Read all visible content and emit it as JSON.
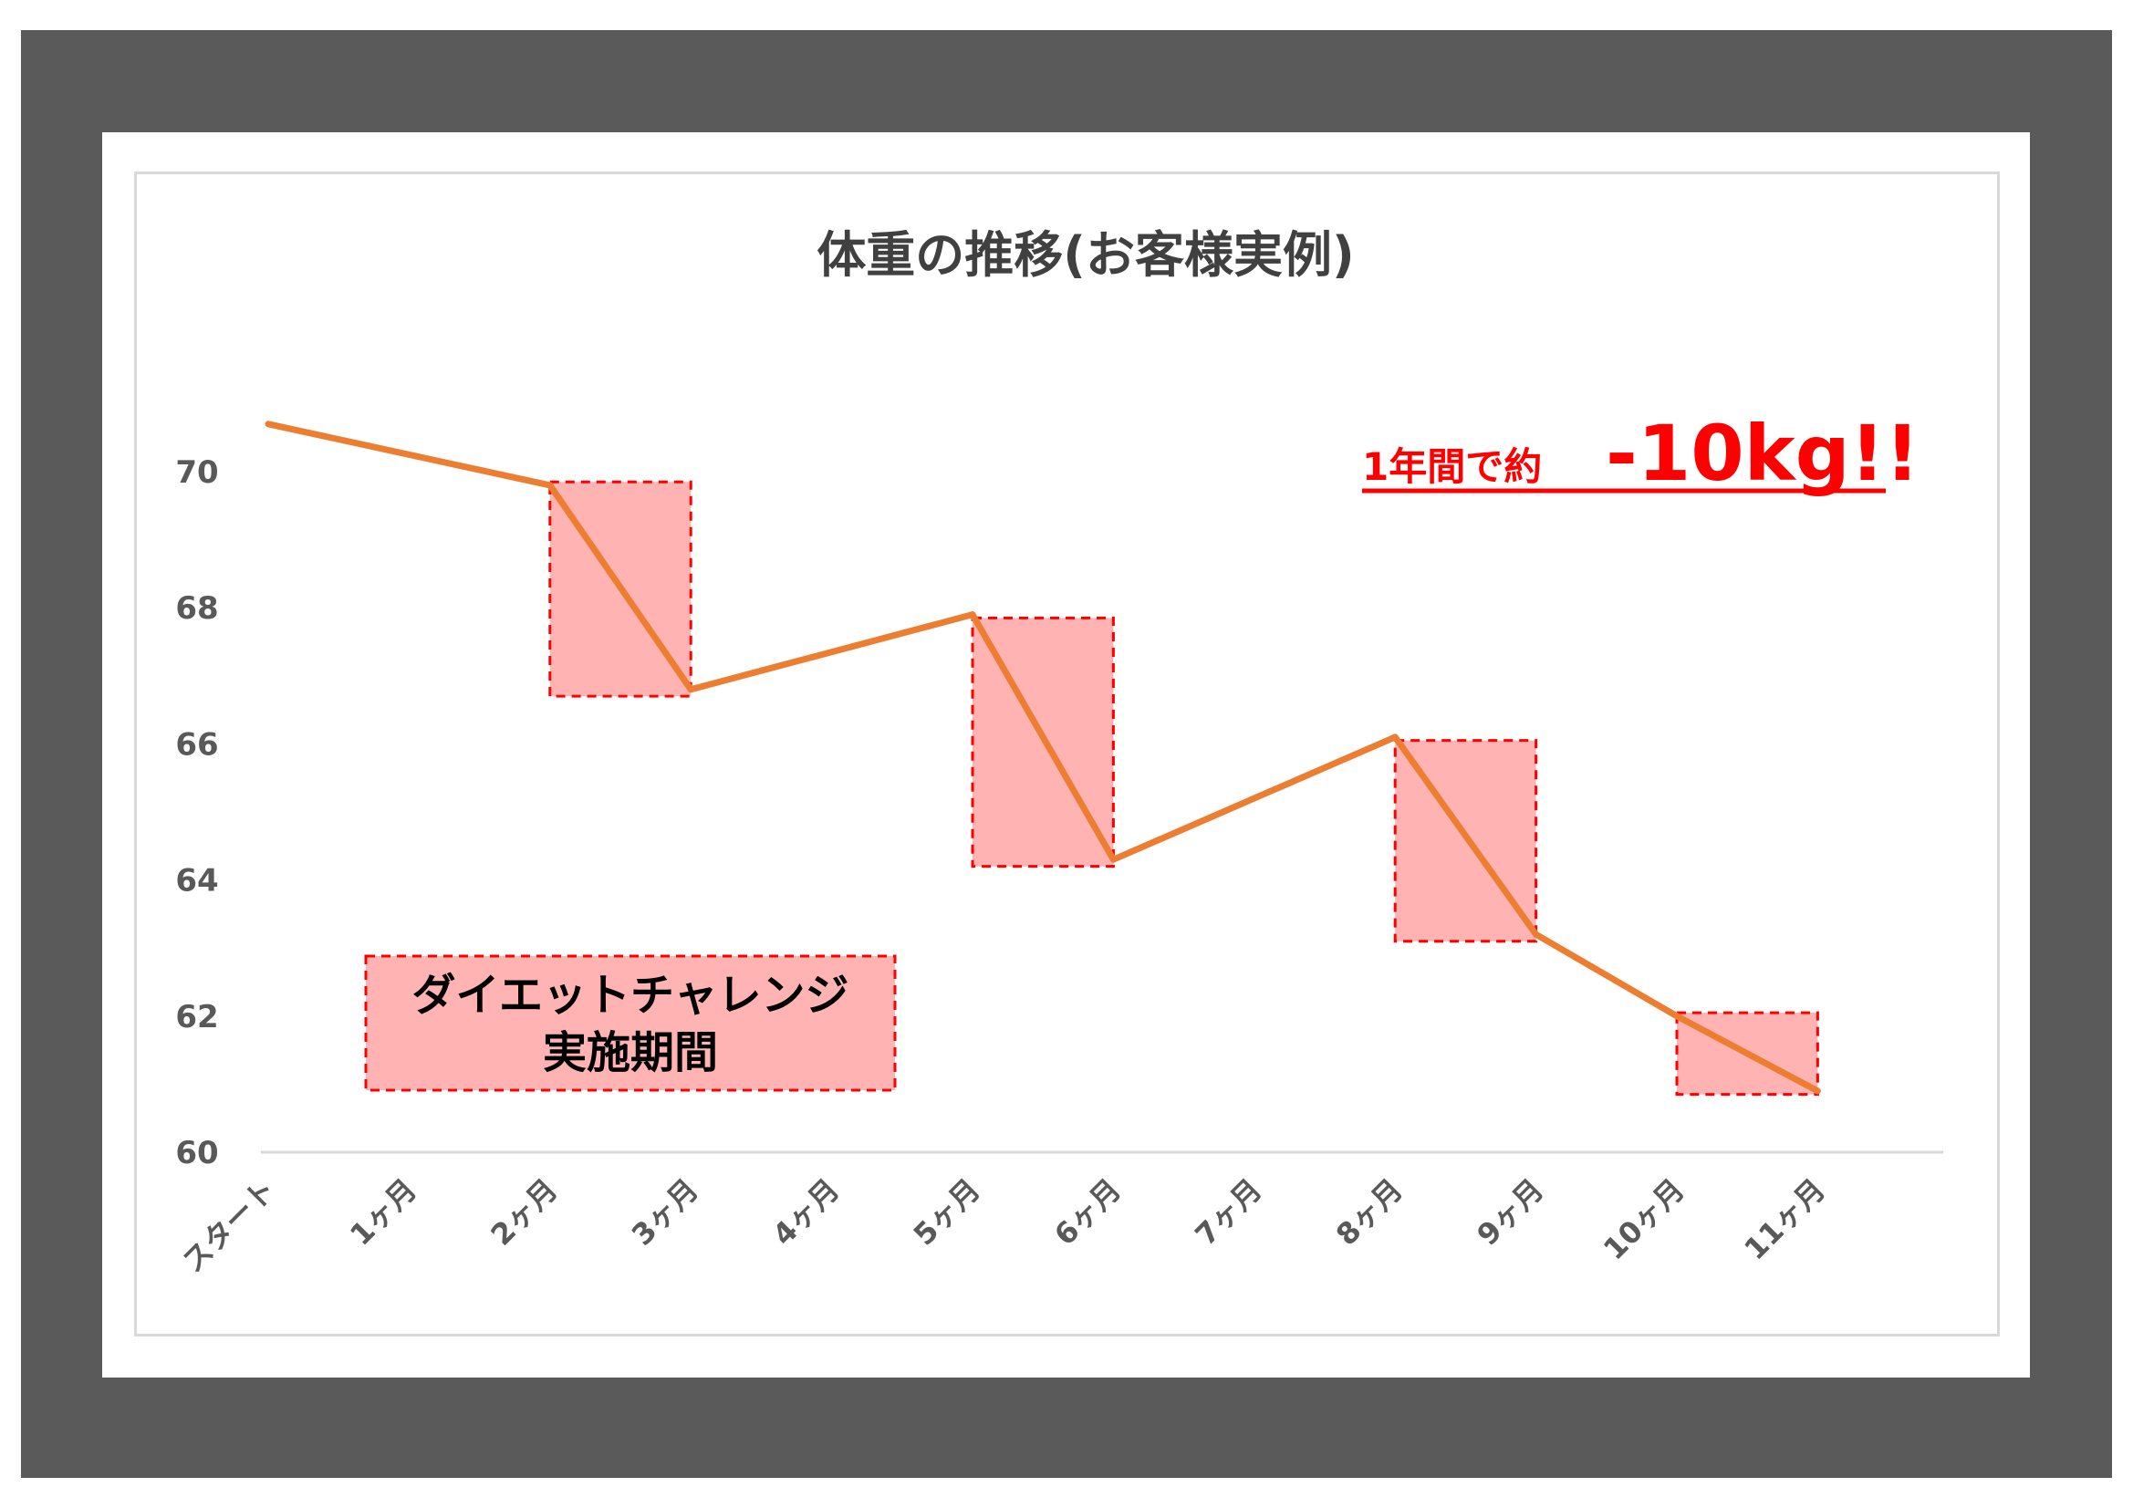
{
  "chart_data": {
    "type": "line",
    "title": "体重の推移(お客様実例)",
    "xlabel": "",
    "ylabel": "",
    "categories": [
      "スタート",
      "1ヶ月",
      "2ヶ月",
      "3ヶ月",
      "4ヶ月",
      "5ヶ月",
      "6ヶ月",
      "7ヶ月",
      "8ヶ月",
      "9ヶ月",
      "10ヶ月",
      "11ヶ月"
    ],
    "series": [
      {
        "values": [
          70.7,
          null,
          69.8,
          66.8,
          null,
          67.9,
          64.3,
          null,
          66.1,
          63.2,
          62.0,
          60.9
        ],
        "color": "#ed7d31"
      }
    ],
    "yticks": [
      60,
      62,
      64,
      66,
      68,
      70
    ],
    "ylim": [
      60,
      72
    ],
    "grid": false,
    "highlight_periods": [
      {
        "from": 2,
        "to": 3,
        "ymin": 66.7,
        "ymax": 69.85
      },
      {
        "from": 5,
        "to": 6,
        "ymin": 64.2,
        "ymax": 67.85
      },
      {
        "from": 8,
        "to": 9,
        "ymin": 63.1,
        "ymax": 66.05
      },
      {
        "from": 10,
        "to": 11,
        "ymin": 60.85,
        "ymax": 62.05
      }
    ],
    "highlight_color": "#ffb3b3",
    "highlight_border_color": "#ff0000",
    "annotations": {
      "period_label": [
        "ダイエットチャレンジ",
        "実施期間"
      ],
      "result_prefix": "1年間で約",
      "result_value": "-10kg!!",
      "result_color": "#ff0000"
    }
  }
}
